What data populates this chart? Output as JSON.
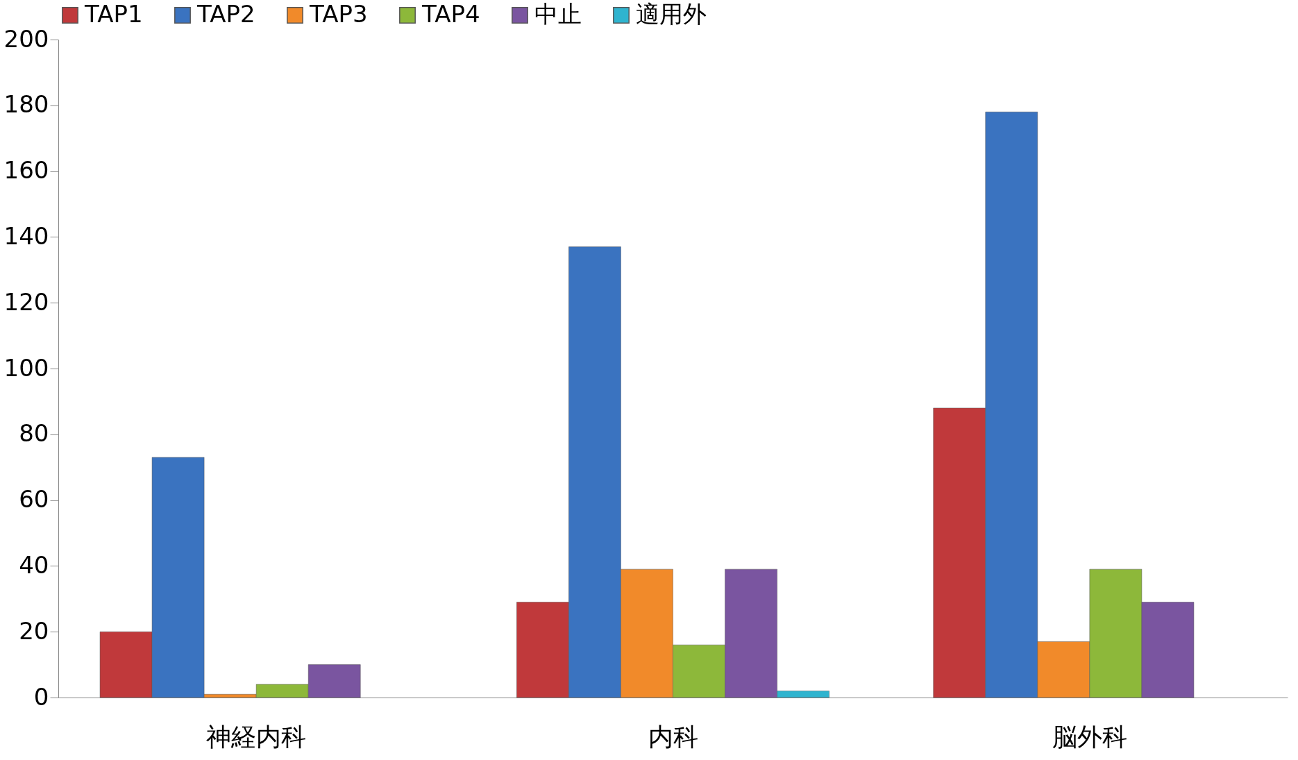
{
  "chart_data": {
    "type": "bar",
    "categories": [
      "神経内科",
      "内科",
      "脳外科"
    ],
    "series": [
      {
        "name": "TAP1",
        "color": "#c0393b",
        "values": [
          20,
          29,
          88
        ]
      },
      {
        "name": "TAP2",
        "color": "#3a73c0",
        "values": [
          73,
          137,
          178
        ]
      },
      {
        "name": "TAP3",
        "color": "#f18a2a",
        "values": [
          1,
          39,
          17
        ]
      },
      {
        "name": "TAP4",
        "color": "#8db83a",
        "values": [
          4,
          16,
          39
        ]
      },
      {
        "name": "中止",
        "color": "#7a55a0",
        "values": [
          10,
          39,
          29
        ]
      },
      {
        "name": "適用外",
        "color": "#2fb4cf",
        "values": [
          null,
          2,
          null
        ]
      }
    ],
    "ylim": [
      0,
      200
    ],
    "yticks": [
      0,
      20,
      40,
      60,
      80,
      100,
      120,
      140,
      160,
      180,
      200
    ],
    "grid": false,
    "legend": "top"
  }
}
